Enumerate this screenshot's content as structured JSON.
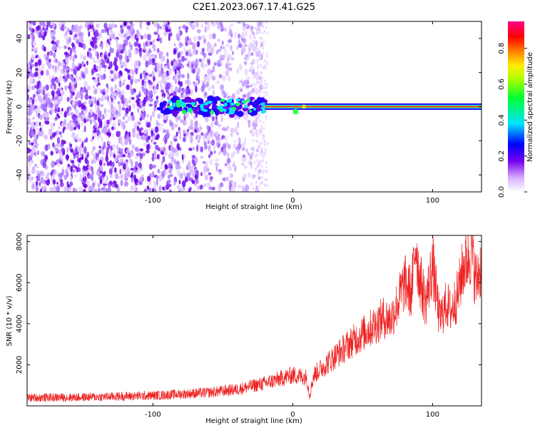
{
  "title": "C2E1.2023.067.17.41.G25",
  "colors": {
    "snr_line": "#ee2222",
    "axes": "#000000"
  },
  "chart_data": [
    {
      "type": "heatmap",
      "xlabel": "Height of straight line (km)",
      "ylabel": "Frequency (Hz)",
      "xlim": [
        -190,
        135
      ],
      "ylim": [
        -50,
        50
      ],
      "xticks": [
        -100,
        0,
        100
      ],
      "yticks": [
        -40,
        -20,
        0,
        20,
        40
      ],
      "colorbar": {
        "label": "Normalized spectral amplitude",
        "range": [
          0,
          0.95
        ],
        "ticks": [
          0.0,
          0.2,
          0.4,
          0.6,
          0.8
        ]
      },
      "description_values": {
        "carrier_frequency_hz": 0,
        "carrier_onset_km": -20,
        "noise_region_km": [
          -190,
          -30
        ]
      }
    },
    {
      "type": "line",
      "xlabel": "Height of straight line (km)",
      "ylabel": "SNR (10 * v/v)",
      "xlim": [
        -190,
        135
      ],
      "ylim": [
        0,
        8300
      ],
      "xticks": [
        -100,
        0,
        100
      ],
      "yticks": [
        2000,
        4000,
        6000,
        8000
      ],
      "series": [
        {
          "x": [
            -190,
            -150,
            -100,
            -60,
            -40,
            -20,
            -10,
            0,
            10,
            12,
            15,
            20,
            30,
            40,
            50,
            60,
            65,
            70,
            75,
            80,
            85,
            88,
            90,
            95,
            100,
            105,
            110,
            113,
            118,
            122,
            128,
            131,
            135
          ],
          "values": [
            400,
            420,
            500,
            650,
            800,
            1100,
            1300,
            1500,
            1400,
            500,
            1500,
            1800,
            2400,
            3000,
            3500,
            4000,
            4300,
            4200,
            5000,
            6000,
            5500,
            8100,
            6500,
            5000,
            6900,
            4200,
            5000,
            4600,
            5400,
            6800,
            7600,
            6000,
            6900
          ]
        }
      ]
    }
  ]
}
